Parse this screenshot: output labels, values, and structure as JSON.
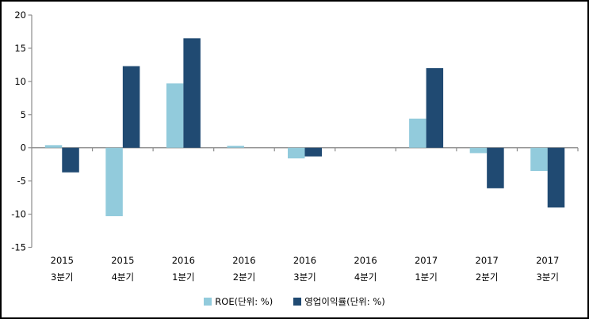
{
  "chart_data": {
    "type": "bar",
    "title": "",
    "xlabel": "",
    "ylabel": "",
    "categories": [
      [
        "2015",
        "3분기"
      ],
      [
        "2015",
        "4분기"
      ],
      [
        "2016",
        "1분기"
      ],
      [
        "2016",
        "2분기"
      ],
      [
        "2016",
        "3분기"
      ],
      [
        "2016",
        "4분기"
      ],
      [
        "2017",
        "1분기"
      ],
      [
        "2017",
        "2분기"
      ],
      [
        "2017",
        "3분기"
      ]
    ],
    "series": [
      {
        "name": "ROE(단위: %)",
        "color": "#92CBDC",
        "values": [
          0.4,
          -10.3,
          9.7,
          0.3,
          -1.6,
          0,
          4.4,
          -0.8,
          -3.5
        ]
      },
      {
        "name": "영업이익률(단위: %)",
        "color": "#204A72",
        "values": [
          -3.7,
          12.3,
          16.5,
          0,
          -1.3,
          0,
          12.0,
          -6.1,
          -9.0
        ]
      }
    ],
    "ylim": [
      -15,
      20
    ],
    "ytick_step": 5,
    "yticks": [
      20,
      15,
      10,
      5,
      0,
      -5,
      -10,
      -15
    ],
    "legend_position": "bottom",
    "grid": false,
    "colors": {
      "axis": "#8C8C8C",
      "text": "#000000",
      "background": "#FFFFFF",
      "frame_border": "#000000"
    }
  }
}
